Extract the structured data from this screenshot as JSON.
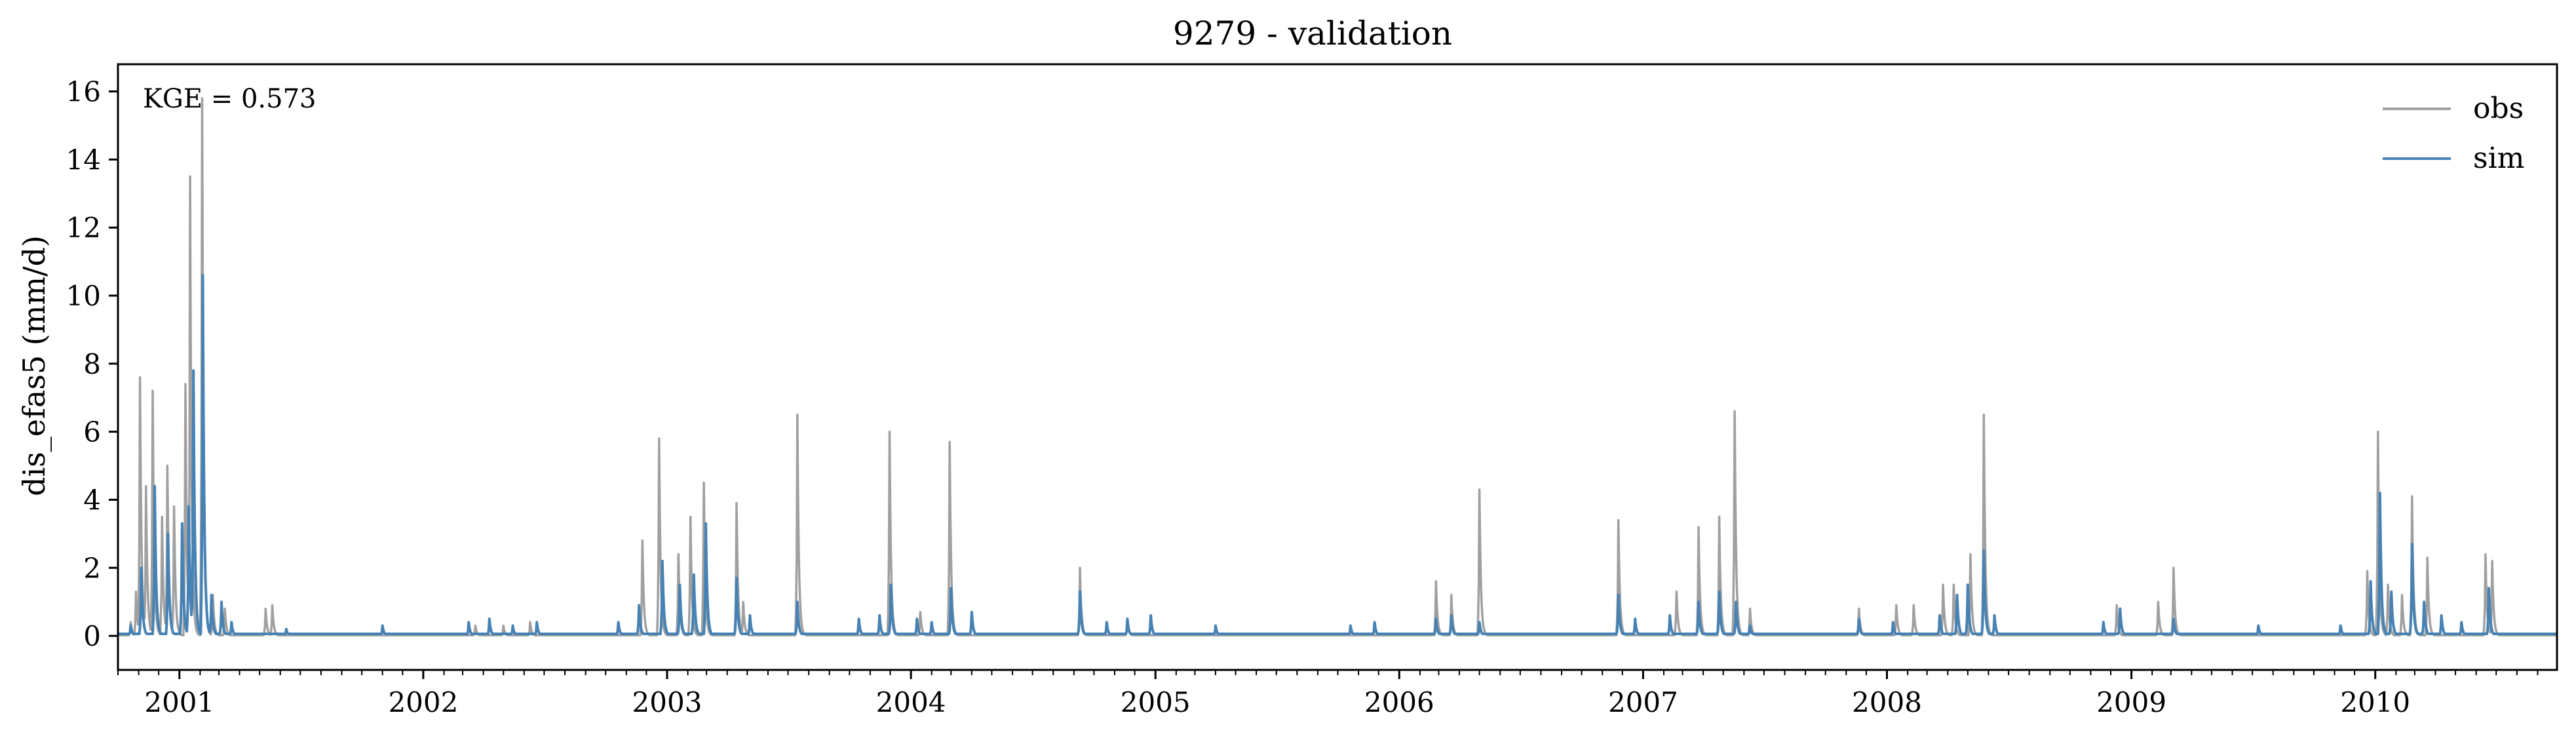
{
  "chart_data": {
    "type": "line",
    "title": "9279 - validation",
    "xlabel": "",
    "ylabel": "dis_efas5 (mm/d)",
    "xlim": [
      "2000-10-01",
      "2010-09-30"
    ],
    "ylim": [
      -1,
      16.8
    ],
    "yticks": [
      0,
      2,
      4,
      6,
      8,
      10,
      12,
      14,
      16
    ],
    "xticks": [
      {
        "date": "2001-01-01",
        "label": "2001"
      },
      {
        "date": "2002-01-01",
        "label": "2002"
      },
      {
        "date": "2003-01-01",
        "label": "2003"
      },
      {
        "date": "2004-01-01",
        "label": "2004"
      },
      {
        "date": "2005-01-01",
        "label": "2005"
      },
      {
        "date": "2006-01-01",
        "label": "2006"
      },
      {
        "date": "2007-01-01",
        "label": "2007"
      },
      {
        "date": "2008-01-01",
        "label": "2008"
      },
      {
        "date": "2009-01-01",
        "label": "2009"
      },
      {
        "date": "2010-01-01",
        "label": "2010"
      }
    ],
    "annotation": "KGE = 0.573",
    "legend_position": "top-right",
    "grid": false,
    "series": [
      {
        "name": "obs",
        "color": "#a0a0a0",
        "baseline": 0.02,
        "peaks": [
          [
            "2000-10-20",
            0.4
          ],
          [
            "2000-10-28",
            1.3
          ],
          [
            "2000-11-03",
            7.6
          ],
          [
            "2000-11-12",
            4.4
          ],
          [
            "2000-11-22",
            7.2
          ],
          [
            "2000-12-06",
            3.5
          ],
          [
            "2000-12-14",
            5.0
          ],
          [
            "2000-12-24",
            3.8
          ],
          [
            "2001-01-10",
            7.4
          ],
          [
            "2001-01-17",
            13.5
          ],
          [
            "2001-02-04",
            15.8
          ],
          [
            "2001-02-20",
            1.2
          ],
          [
            "2001-03-10",
            0.8
          ],
          [
            "2001-05-10",
            0.8
          ],
          [
            "2001-05-20",
            0.9
          ],
          [
            "2002-03-20",
            0.3
          ],
          [
            "2002-05-01",
            0.3
          ],
          [
            "2002-06-10",
            0.4
          ],
          [
            "2002-11-25",
            2.8
          ],
          [
            "2002-12-20",
            5.8
          ],
          [
            "2003-01-18",
            2.4
          ],
          [
            "2003-02-05",
            3.5
          ],
          [
            "2003-02-25",
            4.5
          ],
          [
            "2003-04-15",
            3.9
          ],
          [
            "2003-04-25",
            1.0
          ],
          [
            "2003-07-15",
            6.5
          ],
          [
            "2003-11-30",
            6.0
          ],
          [
            "2004-01-15",
            0.7
          ],
          [
            "2004-02-28",
            5.7
          ],
          [
            "2004-09-10",
            2.0
          ],
          [
            "2004-11-20",
            0.5
          ],
          [
            "2006-02-25",
            1.6
          ],
          [
            "2006-03-20",
            1.2
          ],
          [
            "2006-05-01",
            4.3
          ],
          [
            "2006-11-25",
            3.4
          ],
          [
            "2007-02-20",
            1.3
          ],
          [
            "2007-03-25",
            3.2
          ],
          [
            "2007-04-25",
            3.5
          ],
          [
            "2007-05-18",
            6.6
          ],
          [
            "2007-06-10",
            0.8
          ],
          [
            "2007-11-20",
            0.8
          ],
          [
            "2008-01-15",
            0.9
          ],
          [
            "2008-02-10",
            0.9
          ],
          [
            "2008-03-25",
            1.5
          ],
          [
            "2008-04-10",
            1.5
          ],
          [
            "2008-05-05",
            2.4
          ],
          [
            "2008-05-25",
            6.5
          ],
          [
            "2008-12-10",
            0.9
          ],
          [
            "2009-02-10",
            1.0
          ],
          [
            "2009-03-05",
            2.0
          ],
          [
            "2009-12-20",
            1.9
          ],
          [
            "2010-01-05",
            6.0
          ],
          [
            "2010-01-20",
            1.5
          ],
          [
            "2010-02-10",
            1.2
          ],
          [
            "2010-02-25",
            4.1
          ],
          [
            "2010-03-20",
            2.3
          ],
          [
            "2010-06-15",
            2.4
          ],
          [
            "2010-06-25",
            2.2
          ]
        ]
      },
      {
        "name": "sim",
        "color": "#4682b4",
        "baseline": 0.06,
        "peaks": [
          [
            "2000-10-20",
            0.3
          ],
          [
            "2000-11-05",
            2.0
          ],
          [
            "2000-11-25",
            4.4
          ],
          [
            "2000-12-15",
            3.0
          ],
          [
            "2001-01-05",
            3.3
          ],
          [
            "2001-01-15",
            3.8
          ],
          [
            "2001-01-22",
            7.8
          ],
          [
            "2001-02-05",
            10.6
          ],
          [
            "2001-02-18",
            1.2
          ],
          [
            "2001-03-05",
            1.0
          ],
          [
            "2001-03-20",
            0.4
          ],
          [
            "2001-06-10",
            0.2
          ],
          [
            "2001-11-01",
            0.3
          ],
          [
            "2002-03-10",
            0.4
          ],
          [
            "2002-04-10",
            0.5
          ],
          [
            "2002-05-15",
            0.3
          ],
          [
            "2002-06-20",
            0.4
          ],
          [
            "2002-10-20",
            0.4
          ],
          [
            "2002-11-20",
            0.9
          ],
          [
            "2002-12-25",
            2.2
          ],
          [
            "2003-01-20",
            1.5
          ],
          [
            "2003-02-10",
            1.8
          ],
          [
            "2003-02-28",
            3.3
          ],
          [
            "2003-04-15",
            1.7
          ],
          [
            "2003-05-05",
            0.6
          ],
          [
            "2003-07-15",
            1.0
          ],
          [
            "2003-10-15",
            0.5
          ],
          [
            "2003-11-15",
            0.6
          ],
          [
            "2003-12-02",
            1.5
          ],
          [
            "2004-01-10",
            0.5
          ],
          [
            "2004-02-01",
            0.4
          ],
          [
            "2004-03-01",
            1.4
          ],
          [
            "2004-04-01",
            0.7
          ],
          [
            "2004-09-10",
            1.3
          ],
          [
            "2004-10-20",
            0.4
          ],
          [
            "2004-11-20",
            0.5
          ],
          [
            "2004-12-25",
            0.6
          ],
          [
            "2005-04-01",
            0.3
          ],
          [
            "2005-10-20",
            0.3
          ],
          [
            "2005-11-25",
            0.4
          ],
          [
            "2006-02-25",
            0.5
          ],
          [
            "2006-03-20",
            0.6
          ],
          [
            "2006-05-01",
            0.4
          ],
          [
            "2006-11-25",
            1.2
          ],
          [
            "2006-12-20",
            0.5
          ],
          [
            "2007-02-10",
            0.6
          ],
          [
            "2007-03-25",
            1.0
          ],
          [
            "2007-04-25",
            1.3
          ],
          [
            "2007-05-20",
            1.0
          ],
          [
            "2007-06-10",
            0.3
          ],
          [
            "2007-11-20",
            0.5
          ],
          [
            "2008-01-10",
            0.4
          ],
          [
            "2008-03-20",
            0.6
          ],
          [
            "2008-04-15",
            1.2
          ],
          [
            "2008-05-01",
            1.5
          ],
          [
            "2008-05-25",
            2.5
          ],
          [
            "2008-06-10",
            0.6
          ],
          [
            "2008-11-20",
            0.4
          ],
          [
            "2008-12-15",
            0.8
          ],
          [
            "2009-03-05",
            0.5
          ],
          [
            "2009-07-10",
            0.3
          ],
          [
            "2009-11-10",
            0.3
          ],
          [
            "2009-12-25",
            1.6
          ],
          [
            "2010-01-08",
            4.2
          ],
          [
            "2010-01-25",
            1.3
          ],
          [
            "2010-02-25",
            2.7
          ],
          [
            "2010-03-15",
            1.0
          ],
          [
            "2010-04-10",
            0.6
          ],
          [
            "2010-05-10",
            0.4
          ],
          [
            "2010-06-20",
            1.4
          ]
        ]
      }
    ]
  }
}
